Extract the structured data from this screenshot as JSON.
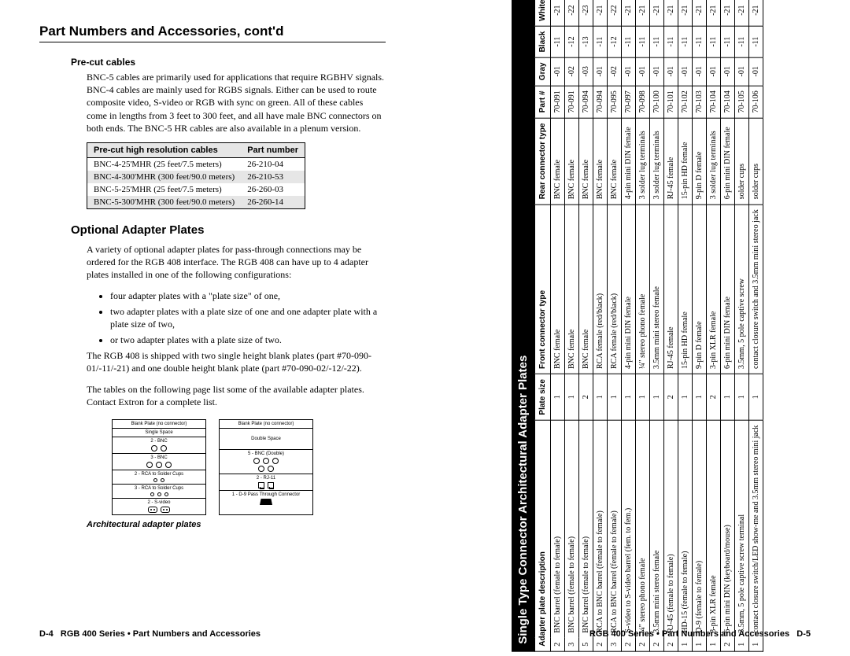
{
  "left": {
    "section_head": "Part Numbers and Accessories, cont'd",
    "precut": {
      "heading": "Pre-cut cables",
      "paragraph": "BNC-5 cables are primarily used for applications that require RGBHV signals. BNC-4 cables are mainly used for RGBS signals. Either can be used to route composite video, S-video or RGB with sync on green. All of these cables come in lengths from 3 feet to 300 feet, and all have male BNC connectors on both ends. The BNC-5 HR cables are also available in a plenum version."
    },
    "cables_table": {
      "col1": "Pre-cut high resolution cables",
      "col2": "Part number",
      "rows": [
        {
          "a": "BNC-4-25'MHR (25 feet/7.5 meters)",
          "b": "26-210-04"
        },
        {
          "a": "BNC-4-300'MHR (300 feet/90.0 meters)",
          "b": "26-210-53"
        },
        {
          "a": "BNC-5-25'MHR (25 feet/7.5 meters)",
          "b": "26-260-03"
        },
        {
          "a": "BNC-5-300'MHR (300 feet/90.0 meters)",
          "b": "26-260-14"
        }
      ]
    },
    "optional": {
      "title": "Optional Adapter Plates",
      "p1": "A variety of optional adapter plates for pass-through connections may be ordered for the RGB 408 interface. The RGB 408 can have up to 4 adapter plates installed in one of the following configurations:",
      "b1": "four adapter plates with a \"plate size\" of one,",
      "b2": "two adapter plates with a plate size of one and one adapter plate with a plate size of two,",
      "b3": "or two adapter plates with a plate size of two.",
      "p2": "The RGB 408 is shipped with two single height blank plates (part #70-090-01/-11/-21) and one double height blank plate (part #70-090-02/-12/-22).",
      "p3": "The tables on the following page list some of the available adapter plates. Contact Extron for a complete list."
    },
    "fig": {
      "colA": {
        "c0": "Blank Plate (no connector)",
        "c1": "Single Space",
        "c2": "2 - BNC",
        "c3": "3 - BNC",
        "c4": "2 - RCA to Solder Cups",
        "c5": "3 - RCA to Solder Cups",
        "c6": "2 - S-video"
      },
      "colB": {
        "c0": "Blank Plate (no connector)",
        "c1": "Double Space",
        "c2": "5 - BNC (Double)",
        "c3": "2 - RJ-11",
        "c4": "1 - D-9 Pass Through Connector"
      },
      "caption": "Architectural adapter plates"
    },
    "footer_page": "D-4",
    "footer_text": "RGB 400 Series • Part Numbers and Accessories"
  },
  "right": {
    "table_title": "Single Type Connector Architectural Adapter Plates",
    "cols": {
      "desc": "Adapter plate description",
      "size": "Plate size",
      "front": "Front connector type",
      "rear": "Rear connector type",
      "part": "Part #",
      "gray": "Gray",
      "black": "Black",
      "white": "White"
    },
    "rows": [
      {
        "n": "2",
        "desc": "BNC barrel (female to female)",
        "size": "1",
        "front": "BNC female",
        "rear": "BNC female",
        "part": "70-091",
        "g": "-01",
        "b": "-11",
        "w": "-21"
      },
      {
        "n": "3",
        "desc": "BNC barrel (female to female)",
        "size": "1",
        "front": "BNC female",
        "rear": "BNC female",
        "part": "70-091",
        "g": "-02",
        "b": "-12",
        "w": "-22"
      },
      {
        "n": "5",
        "desc": "BNC barrel (female to female)",
        "size": "2",
        "front": "BNC female",
        "rear": "BNC female",
        "part": "70-094",
        "g": "-03",
        "b": "-13",
        "w": "-23"
      },
      {
        "n": "2",
        "desc": "RCA to BNC barrel (female to female)",
        "size": "1",
        "front": "RCA female (red/black)",
        "rear": "BNC female",
        "part": "70-094",
        "g": "-01",
        "b": "-11",
        "w": "-21"
      },
      {
        "n": "3",
        "desc": "RCA to BNC barrel (female to female)",
        "size": "1",
        "front": "RCA female (red/black)",
        "rear": "BNC female",
        "part": "70-095",
        "g": "-02",
        "b": "-12",
        "w": "-22"
      },
      {
        "n": "2",
        "desc": "S-video to S-video barrel (fem. to fem.)",
        "size": "1",
        "front": "4-pin mini DIN female",
        "rear": "4-pin mini DIN female",
        "part": "70-097",
        "g": "-01",
        "b": "-11",
        "w": "-21"
      },
      {
        "n": "2",
        "desc": "¼\" stereo phono female",
        "size": "1",
        "front": "¼\" stereo phono female",
        "rear": "3 solder lug terminals",
        "part": "70-098",
        "g": "-01",
        "b": "-11",
        "w": "-21"
      },
      {
        "n": "2",
        "desc": "3.5mm mini stereo female",
        "size": "1",
        "front": "3.5mm mini stereo female",
        "rear": "3 solder lug terminals",
        "part": "70-100",
        "g": "-01",
        "b": "-11",
        "w": "-21"
      },
      {
        "n": "2",
        "desc": "RJ-45 (female to female)",
        "size": "2",
        "front": "RJ-45 female",
        "rear": "RJ-45 female",
        "part": "70-101",
        "g": "-01",
        "b": "-11",
        "w": "-21"
      },
      {
        "n": "1",
        "desc": "HD-15 (female to female)",
        "size": "1",
        "front": "15-pin HD female",
        "rear": "15-pin HD female",
        "part": "70-102",
        "g": "-01",
        "b": "-11",
        "w": "-21"
      },
      {
        "n": "1",
        "desc": "D-9 (female to female)",
        "size": "1",
        "front": "9-pin D female",
        "rear": "9-pin D female",
        "part": "70-103",
        "g": "-01",
        "b": "-11",
        "w": "-21"
      },
      {
        "n": "1",
        "desc": "3-pin XLR female",
        "size": "2",
        "front": "3-pin XLR female",
        "rear": "3 solder lug terminals",
        "part": "70-104",
        "g": "-01",
        "b": "-11",
        "w": "-21"
      },
      {
        "n": "2",
        "desc": "6-pin mini DIN (keyboard/mouse)",
        "size": "1",
        "front": "6-pin mini DIN female",
        "rear": "6-pin mini DIN female",
        "part": "70-104",
        "g": "-01",
        "b": "-11",
        "w": "-21"
      },
      {
        "n": "1",
        "desc": "3.5mm, 5 pole captive screw terminal",
        "size": "1",
        "front": "3.5mm, 5 pole captive screw",
        "rear": "solder cups",
        "part": "70-105",
        "g": "-01",
        "b": "-11",
        "w": "-21"
      },
      {
        "n": "1",
        "desc": "contact closure switch/LED show-me and 3.5mm stereo mini jack",
        "size": "1",
        "front": "contact closure switch and 3.5mm mini stereo jack",
        "rear": "solder cups",
        "part": "70-106",
        "g": "-01",
        "b": "-11",
        "w": "-21"
      }
    ],
    "footer_text": "RGB 400 Series • Part Numbers and Accessories",
    "footer_page": "D-5"
  }
}
